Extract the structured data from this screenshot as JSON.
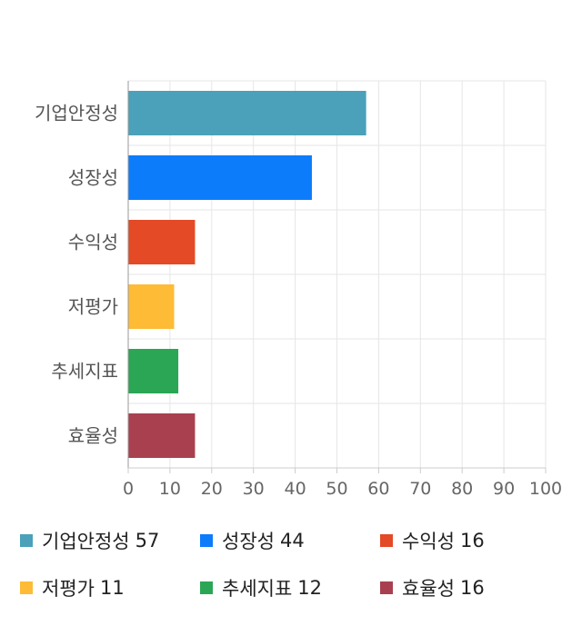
{
  "chart_data": {
    "type": "bar",
    "orientation": "horizontal",
    "categories": [
      "기업안정성",
      "성장성",
      "수익성",
      "저평가",
      "추세지표",
      "효율성"
    ],
    "values": [
      57,
      44,
      16,
      11,
      12,
      16
    ],
    "colors": [
      "#4aa1b9",
      "#0c7cfb",
      "#e34a25",
      "#fdbb36",
      "#2ba655",
      "#a9404f"
    ],
    "xlim": [
      0,
      100
    ],
    "x_ticks": [
      "0",
      "10",
      "20",
      "30",
      "40",
      "50",
      "60",
      "70",
      "80",
      "90",
      "100"
    ],
    "grid": true,
    "legend_position": "bottom"
  },
  "legend": [
    {
      "label": "기업안정성",
      "value": "57",
      "color": "#4aa1b9"
    },
    {
      "label": "성장성",
      "value": "44",
      "color": "#0c7cfb"
    },
    {
      "label": "수익성",
      "value": "16",
      "color": "#e34a25"
    },
    {
      "label": "저평가",
      "value": "11",
      "color": "#fdbb36"
    },
    {
      "label": "추세지표",
      "value": "12",
      "color": "#2ba655"
    },
    {
      "label": "효율성",
      "value": "16",
      "color": "#a9404f"
    }
  ]
}
